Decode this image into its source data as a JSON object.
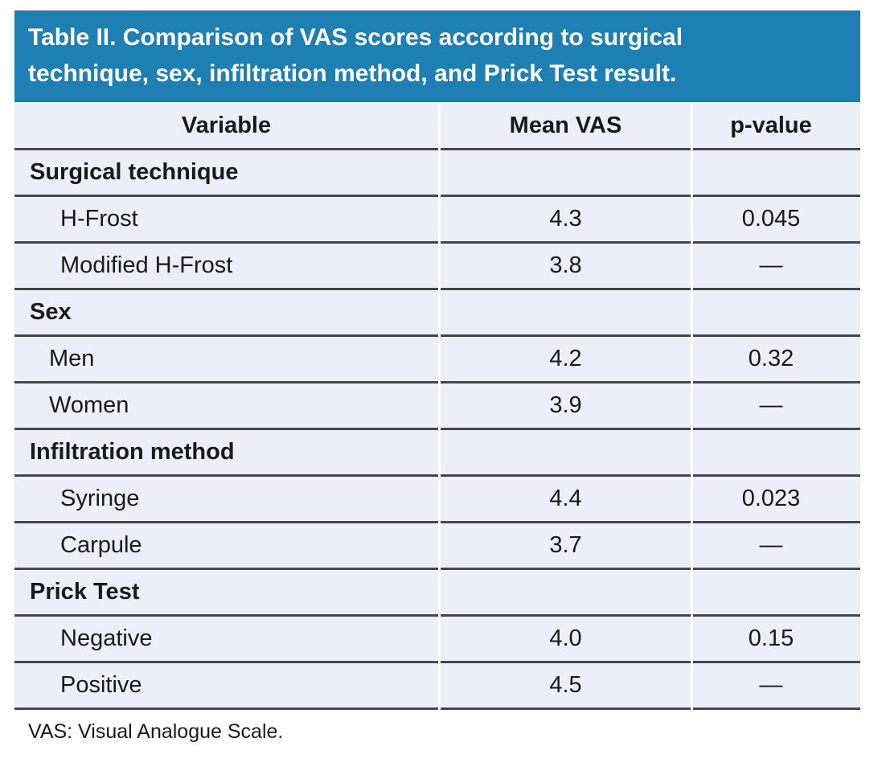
{
  "title": {
    "line1": "Table II. Comparison of VAS scores according to surgical",
    "line2": "technique, sex, infiltration method, and Prick Test result."
  },
  "columns": {
    "variable": "Variable",
    "mean_vas": "Mean VAS",
    "p_value": "p-value"
  },
  "sections": [
    {
      "header": "Surgical technique",
      "rows": [
        {
          "label": "H-Frost",
          "mean": "4.3",
          "p": "0.045"
        },
        {
          "label": "Modified H-Frost",
          "mean": "3.8",
          "p": "—"
        }
      ]
    },
    {
      "header": "Sex",
      "rows": [
        {
          "label": "Men",
          "mean": "4.2",
          "p": "0.32"
        },
        {
          "label": "Women",
          "mean": "3.9",
          "p": "—"
        }
      ]
    },
    {
      "header": "Infiltration method",
      "rows": [
        {
          "label": "Syringe",
          "mean": "4.4",
          "p": "0.023"
        },
        {
          "label": "Carpule",
          "mean": "3.7",
          "p": "—"
        }
      ]
    },
    {
      "header": "Prick Test",
      "rows": [
        {
          "label": "Negative",
          "mean": "4.0",
          "p": "0.15"
        },
        {
          "label": "Positive",
          "mean": "4.5",
          "p": "—"
        }
      ]
    }
  ],
  "footnote": "VAS: Visual Analogue Scale.",
  "colors": {
    "title_bar_bg": "#1e7fb2",
    "title_text": "#ffffff",
    "row_bg": "#ebeff7",
    "border": "#46474c",
    "body_text": "#1a1a1a"
  }
}
